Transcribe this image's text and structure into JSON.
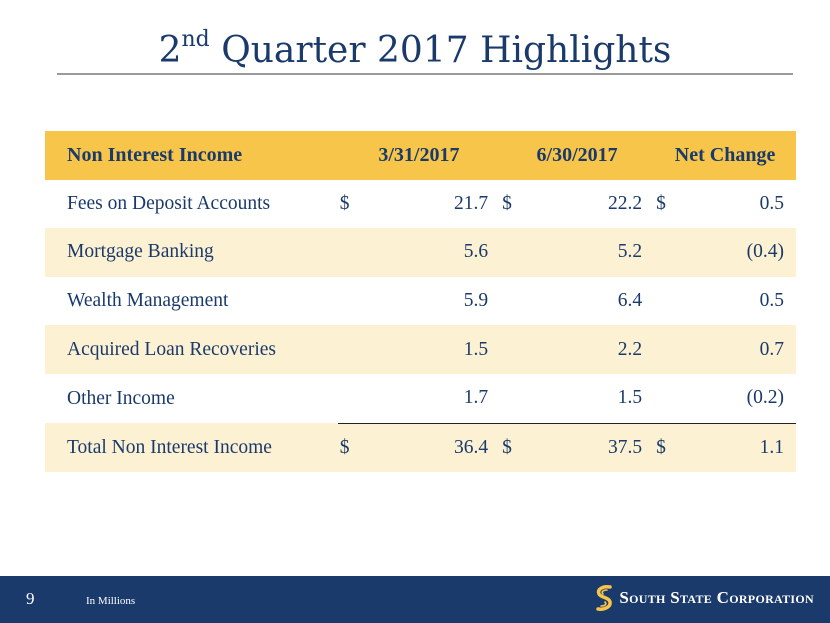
{
  "slide": {
    "title_prefix": "2",
    "title_superscript": "nd",
    "title_rest": " Quarter 2017 Highlights"
  },
  "table": {
    "headers": {
      "label": "Non Interest Income",
      "col1": "3/31/2017",
      "col2": "6/30/2017",
      "col3": "Net Change"
    },
    "rows": [
      {
        "label": "Fees on Deposit Accounts",
        "cur1": "$",
        "v1": "21.7",
        "cur2": "$",
        "v2": "22.2",
        "cur3": "$",
        "v3": "0.5"
      },
      {
        "label": "Mortgage Banking",
        "cur1": "",
        "v1": "5.6",
        "cur2": "",
        "v2": "5.2",
        "cur3": "",
        "v3": "(0.4)"
      },
      {
        "label": "Wealth Management",
        "cur1": "",
        "v1": "5.9",
        "cur2": "",
        "v2": "6.4",
        "cur3": "",
        "v3": "0.5"
      },
      {
        "label": "Acquired Loan Recoveries",
        "cur1": "",
        "v1": "1.5",
        "cur2": "",
        "v2": "2.2",
        "cur3": "",
        "v3": "0.7"
      },
      {
        "label": "Other Income",
        "cur1": "",
        "v1": "1.7",
        "cur2": "",
        "v2": "1.5",
        "cur3": "",
        "v3": "(0.2)"
      }
    ],
    "total": {
      "label": "Total Non Interest Income",
      "cur1": "$",
      "v1": "36.4",
      "cur2": "$",
      "v2": "37.5",
      "cur3": "$",
      "v3": "1.1"
    }
  },
  "footer": {
    "page_number": "9",
    "note": "In Millions",
    "logo_text": "South State Corporation",
    "logo_icon": "south-state-emblem"
  },
  "colors": {
    "navy": "#1a3a6b",
    "header_gold": "#f7c54a",
    "row_shade": "#fdf1d3"
  }
}
